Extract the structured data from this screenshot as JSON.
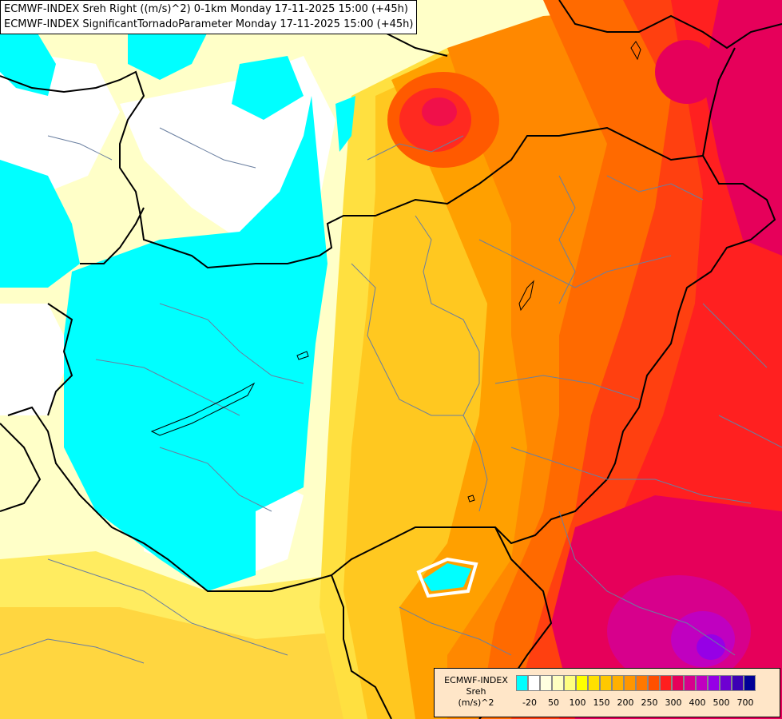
{
  "title": {
    "line1": "ECMWF-INDEX Sreh Right ((m/s)^2) 0-1km Monday 17-11-2025 15:00 (+45h)",
    "line2": "ECMWF-INDEX SignificantTornadoParameter Monday 17-11-2025 15:00 (+45h)"
  },
  "legend": {
    "caption1": "ECMWF-INDEX",
    "caption2": "Sreh",
    "caption3": "(m/s)^2",
    "colors": [
      "#00ffff",
      "#ffffff",
      "#ffffe0",
      "#ffffc0",
      "#ffff80",
      "#ffff00",
      "#ffe000",
      "#ffc800",
      "#ffb000",
      "#ff9600",
      "#ff7800",
      "#ff5000",
      "#ff1e1e",
      "#e6005a",
      "#d7008c",
      "#c000c0",
      "#9600e6",
      "#6e00d2",
      "#3c00b4",
      "#000096"
    ],
    "ticks": [
      "-20",
      "50",
      "100",
      "150",
      "200",
      "250",
      "300",
      "400",
      "500",
      "700"
    ]
  }
}
